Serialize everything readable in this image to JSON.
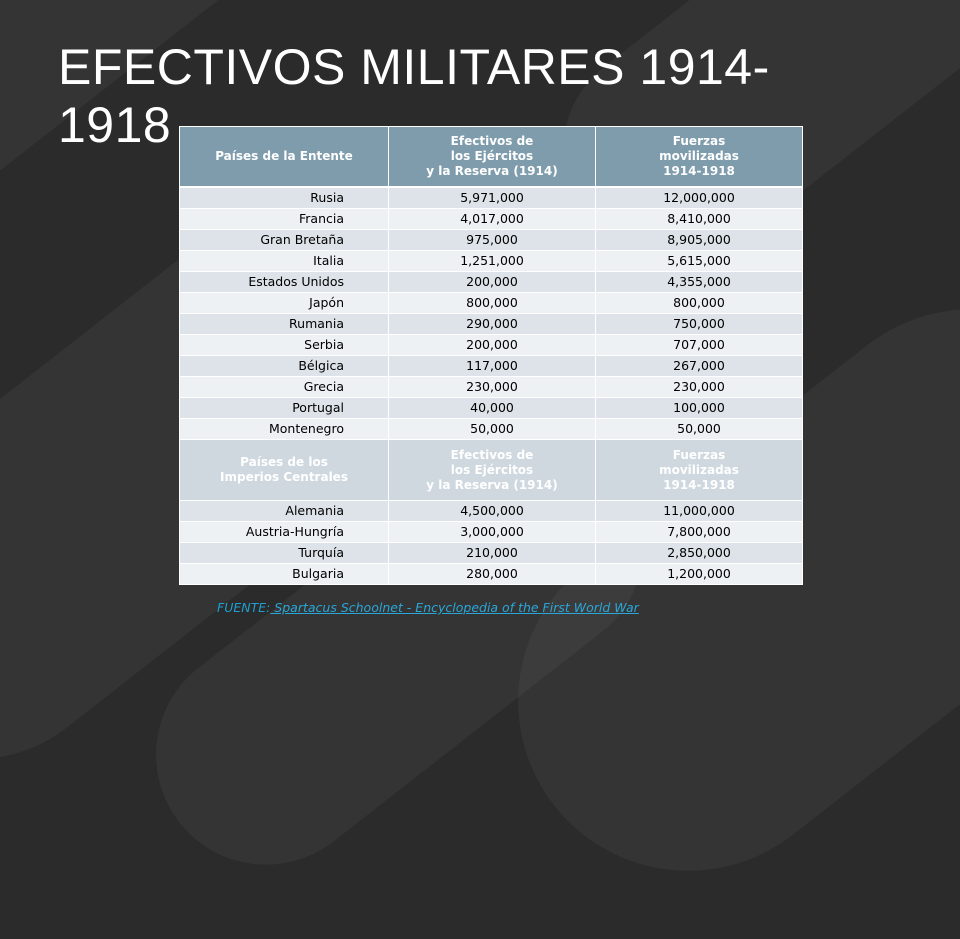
{
  "slide": {
    "title": "EFECTIVOS MILITARES 1914-1918"
  },
  "table": {
    "entente_header": {
      "col1": "Países de la Entente",
      "col2": [
        "Efectivos de",
        "los Ejércitos",
        "y la Reserva (1914)"
      ],
      "col3": [
        "Fuerzas",
        "movilizadas",
        "1914-1918"
      ]
    },
    "entente_rows": [
      {
        "country": "Rusia",
        "efectivos": "5,971,000",
        "movilizadas": "12,000,000"
      },
      {
        "country": "Francia",
        "efectivos": "4,017,000",
        "movilizadas": "8,410,000"
      },
      {
        "country": "Gran Bretaña",
        "efectivos": "975,000",
        "movilizadas": "8,905,000"
      },
      {
        "country": "Italia",
        "efectivos": "1,251,000",
        "movilizadas": "5,615,000"
      },
      {
        "country": "Estados Unidos",
        "efectivos": "200,000",
        "movilizadas": "4,355,000"
      },
      {
        "country": "Japón",
        "efectivos": "800,000",
        "movilizadas": "800,000"
      },
      {
        "country": "Rumania",
        "efectivos": "290,000",
        "movilizadas": "750,000"
      },
      {
        "country": "Serbia",
        "efectivos": "200,000",
        "movilizadas": "707,000"
      },
      {
        "country": "Bélgica",
        "efectivos": "117,000",
        "movilizadas": "267,000"
      },
      {
        "country": "Grecia",
        "efectivos": "230,000",
        "movilizadas": "230,000"
      },
      {
        "country": "Portugal",
        "efectivos": "40,000",
        "movilizadas": "100,000"
      },
      {
        "country": "Montenegro",
        "efectivos": "50,000",
        "movilizadas": "50,000"
      }
    ],
    "central_header": {
      "col1": [
        "Países de los",
        "Imperios Centrales"
      ],
      "col2": [
        "Efectivos de",
        "los Ejércitos",
        "y la Reserva (1914)"
      ],
      "col3": [
        "Fuerzas",
        "movilizadas",
        "1914-1918"
      ]
    },
    "central_rows": [
      {
        "country": "Alemania",
        "efectivos": "4,500,000",
        "movilizadas": "11,000,000"
      },
      {
        "country": "Austria-Hungría",
        "efectivos": "3,000,000",
        "movilizadas": "7,800,000"
      },
      {
        "country": "Turquía",
        "efectivos": "210,000",
        "movilizadas": "2,850,000"
      },
      {
        "country": "Bulgaria",
        "efectivos": "280,000",
        "movilizadas": "1,200,000"
      }
    ]
  },
  "source": {
    "prefix": "FUENTE:",
    "link_text": " Spartacus Schoolnet - Encyclopedia of the First World War"
  }
}
